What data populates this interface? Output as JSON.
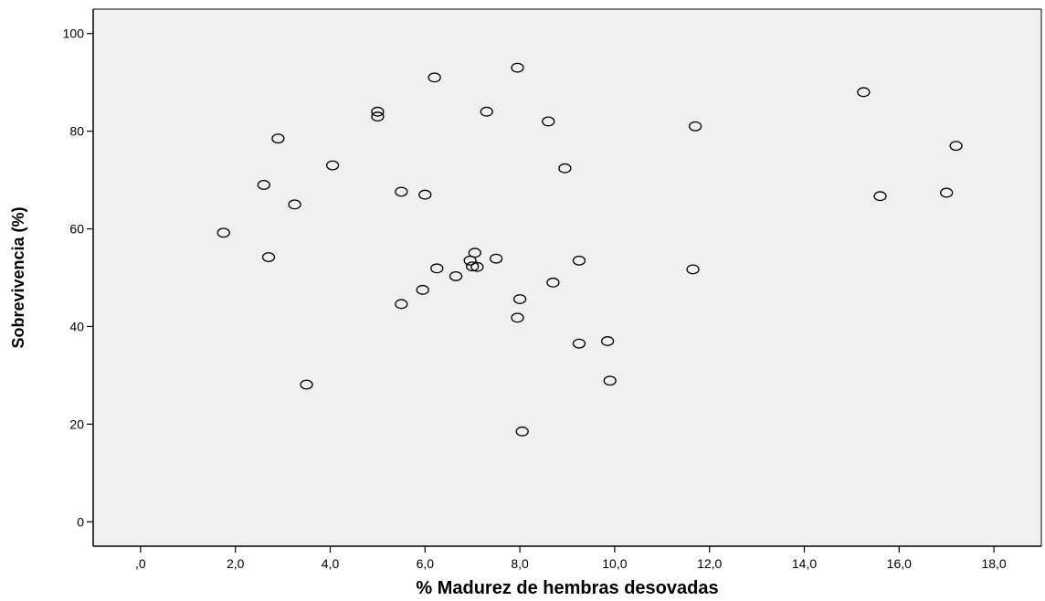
{
  "chart_data": {
    "type": "scatter",
    "xlabel": "% Madurez de hembras desovadas",
    "ylabel": "Sobrevivencia (%)",
    "xlim": [
      -1.0,
      19.0
    ],
    "ylim": [
      -5,
      105
    ],
    "x_ticks": [
      0,
      2,
      4,
      6,
      8,
      10,
      12,
      14,
      16,
      18
    ],
    "x_tick_labels": [
      ",0",
      "2,0",
      "4,0",
      "6,0",
      "8,0",
      "10,0",
      "12,0",
      "14,0",
      "16,0",
      "18,0"
    ],
    "y_ticks": [
      0,
      20,
      40,
      60,
      80,
      100
    ],
    "y_tick_labels": [
      "0",
      "20",
      "40",
      "60",
      "80",
      "100"
    ],
    "grid": false,
    "plot_background": "#f0f0f0",
    "marker_color": "#000000",
    "series": [
      {
        "points": [
          {
            "x": 1.75,
            "y": 59.2
          },
          {
            "x": 2.6,
            "y": 69.0
          },
          {
            "x": 2.7,
            "y": 54.2
          },
          {
            "x": 2.9,
            "y": 78.5
          },
          {
            "x": 3.25,
            "y": 65.0
          },
          {
            "x": 3.5,
            "y": 28.1
          },
          {
            "x": 4.05,
            "y": 73.0
          },
          {
            "x": 5.0,
            "y": 84.0
          },
          {
            "x": 5.0,
            "y": 83.0
          },
          {
            "x": 5.5,
            "y": 67.6
          },
          {
            "x": 5.5,
            "y": 44.6
          },
          {
            "x": 5.95,
            "y": 47.5
          },
          {
            "x": 6.0,
            "y": 67.0
          },
          {
            "x": 6.2,
            "y": 91.0
          },
          {
            "x": 6.25,
            "y": 51.9
          },
          {
            "x": 6.65,
            "y": 50.3
          },
          {
            "x": 6.95,
            "y": 53.5
          },
          {
            "x": 7.0,
            "y": 52.3
          },
          {
            "x": 7.05,
            "y": 55.1
          },
          {
            "x": 7.1,
            "y": 52.2
          },
          {
            "x": 7.3,
            "y": 84.0
          },
          {
            "x": 7.5,
            "y": 53.9
          },
          {
            "x": 7.95,
            "y": 93.0
          },
          {
            "x": 7.95,
            "y": 41.8
          },
          {
            "x": 8.0,
            "y": 45.6
          },
          {
            "x": 8.05,
            "y": 18.5
          },
          {
            "x": 8.6,
            "y": 82.0
          },
          {
            "x": 8.7,
            "y": 49.0
          },
          {
            "x": 8.95,
            "y": 72.4
          },
          {
            "x": 9.25,
            "y": 53.5
          },
          {
            "x": 9.25,
            "y": 36.5
          },
          {
            "x": 9.85,
            "y": 37.0
          },
          {
            "x": 9.9,
            "y": 28.9
          },
          {
            "x": 11.65,
            "y": 51.7
          },
          {
            "x": 11.7,
            "y": 81.0
          },
          {
            "x": 15.25,
            "y": 88.0
          },
          {
            "x": 15.6,
            "y": 66.7
          },
          {
            "x": 17.0,
            "y": 67.4
          },
          {
            "x": 17.2,
            "y": 77.0
          }
        ]
      }
    ]
  }
}
